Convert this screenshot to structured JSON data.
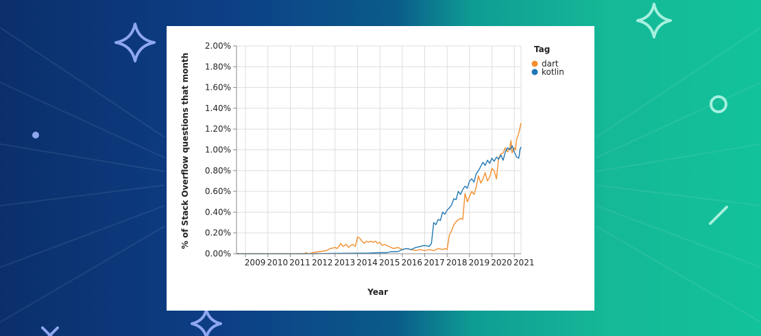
{
  "colors": {
    "dart": "#f28e2b",
    "kotlin": "#1f77b4",
    "background_left": "#0d3f86",
    "background_right": "#12c29a",
    "decoration_left": "#8ea6f0",
    "decoration_right": "#a6f0df"
  },
  "decorations": [
    "sparkle-icon",
    "sparkle-icon",
    "sparkle-icon",
    "ring-icon",
    "dot-icon",
    "slash-icon",
    "x-icon"
  ],
  "chart_data": {
    "type": "line",
    "xlabel": "Year",
    "ylabel": "% of Stack Overflow questions that month",
    "ylim": [
      0,
      2.0
    ],
    "xlim": [
      2008.6,
      2021.3
    ],
    "y_ticks": [
      "0.00%",
      "0.20%",
      "0.40%",
      "0.60%",
      "0.80%",
      "1.00%",
      "1.20%",
      "1.40%",
      "1.60%",
      "1.80%",
      "2.00%"
    ],
    "x_ticks": [
      "2009",
      "2010",
      "2011",
      "2012",
      "2013",
      "2014",
      "2015",
      "2016",
      "2017",
      "2018",
      "2019",
      "2020",
      "2021"
    ],
    "grid": true,
    "legend": {
      "title": "Tag",
      "position": "right"
    },
    "series": [
      {
        "name": "dart",
        "points": [
          [
            2008.6,
            0.0
          ],
          [
            2011.6,
            0.0
          ],
          [
            2011.7,
            0.01
          ],
          [
            2011.8,
            0.0
          ],
          [
            2012.0,
            0.01
          ],
          [
            2012.3,
            0.02
          ],
          [
            2012.6,
            0.03
          ],
          [
            2012.8,
            0.05
          ],
          [
            2013.0,
            0.06
          ],
          [
            2013.1,
            0.05
          ],
          [
            2013.2,
            0.08
          ],
          [
            2013.25,
            0.1
          ],
          [
            2013.35,
            0.07
          ],
          [
            2013.5,
            0.09
          ],
          [
            2013.6,
            0.06
          ],
          [
            2013.7,
            0.08
          ],
          [
            2013.8,
            0.09
          ],
          [
            2013.9,
            0.07
          ],
          [
            2014.0,
            0.16
          ],
          [
            2014.1,
            0.15
          ],
          [
            2014.2,
            0.12
          ],
          [
            2014.3,
            0.1
          ],
          [
            2014.4,
            0.12
          ],
          [
            2014.5,
            0.11
          ],
          [
            2014.6,
            0.12
          ],
          [
            2014.7,
            0.11
          ],
          [
            2014.8,
            0.12
          ],
          [
            2014.9,
            0.1
          ],
          [
            2015.0,
            0.11
          ],
          [
            2015.1,
            0.08
          ],
          [
            2015.2,
            0.09
          ],
          [
            2015.4,
            0.07
          ],
          [
            2015.6,
            0.05
          ],
          [
            2015.8,
            0.06
          ],
          [
            2016.0,
            0.04
          ],
          [
            2016.2,
            0.05
          ],
          [
            2016.4,
            0.04
          ],
          [
            2016.6,
            0.03
          ],
          [
            2016.8,
            0.04
          ],
          [
            2017.0,
            0.03
          ],
          [
            2017.2,
            0.04
          ],
          [
            2017.4,
            0.03
          ],
          [
            2017.6,
            0.05
          ],
          [
            2017.8,
            0.04
          ],
          [
            2017.9,
            0.05
          ],
          [
            2018.0,
            0.04
          ],
          [
            2018.1,
            0.18
          ],
          [
            2018.2,
            0.22
          ],
          [
            2018.3,
            0.28
          ],
          [
            2018.45,
            0.32
          ],
          [
            2018.6,
            0.34
          ],
          [
            2018.7,
            0.33
          ],
          [
            2018.8,
            0.58
          ],
          [
            2018.9,
            0.5
          ],
          [
            2019.0,
            0.55
          ],
          [
            2019.1,
            0.6
          ],
          [
            2019.2,
            0.57
          ],
          [
            2019.3,
            0.64
          ],
          [
            2019.4,
            0.75
          ],
          [
            2019.5,
            0.68
          ],
          [
            2019.6,
            0.72
          ],
          [
            2019.7,
            0.78
          ],
          [
            2019.8,
            0.7
          ],
          [
            2019.9,
            0.74
          ],
          [
            2020.0,
            0.82
          ],
          [
            2020.1,
            0.8
          ],
          [
            2020.2,
            0.72
          ],
          [
            2020.3,
            0.92
          ],
          [
            2020.4,
            0.96
          ],
          [
            2020.5,
            0.97
          ],
          [
            2020.6,
            1.02
          ],
          [
            2020.7,
            0.98
          ],
          [
            2020.8,
            1.02
          ],
          [
            2020.85,
            1.09
          ],
          [
            2020.9,
            0.97
          ],
          [
            2021.0,
            1.02
          ],
          [
            2021.05,
            1.0
          ],
          [
            2021.1,
            1.1
          ],
          [
            2021.2,
            1.16
          ],
          [
            2021.3,
            1.26
          ]
        ]
      },
      {
        "name": "kotlin",
        "points": [
          [
            2008.6,
            0.0
          ],
          [
            2012.0,
            0.0
          ],
          [
            2013.0,
            0.003
          ],
          [
            2014.0,
            0.005
          ],
          [
            2014.5,
            0.006
          ],
          [
            2015.0,
            0.01
          ],
          [
            2015.3,
            0.01
          ],
          [
            2015.5,
            0.02
          ],
          [
            2015.8,
            0.02
          ],
          [
            2016.0,
            0.04
          ],
          [
            2016.2,
            0.05
          ],
          [
            2016.4,
            0.04
          ],
          [
            2016.6,
            0.06
          ],
          [
            2016.8,
            0.07
          ],
          [
            2017.0,
            0.08
          ],
          [
            2017.2,
            0.07
          ],
          [
            2017.3,
            0.1
          ],
          [
            2017.4,
            0.3
          ],
          [
            2017.5,
            0.28
          ],
          [
            2017.6,
            0.33
          ],
          [
            2017.7,
            0.32
          ],
          [
            2017.8,
            0.4
          ],
          [
            2017.9,
            0.38
          ],
          [
            2018.0,
            0.42
          ],
          [
            2018.1,
            0.44
          ],
          [
            2018.2,
            0.47
          ],
          [
            2018.3,
            0.53
          ],
          [
            2018.4,
            0.52
          ],
          [
            2018.5,
            0.6
          ],
          [
            2018.6,
            0.57
          ],
          [
            2018.7,
            0.62
          ],
          [
            2018.8,
            0.65
          ],
          [
            2018.9,
            0.63
          ],
          [
            2019.0,
            0.7
          ],
          [
            2019.1,
            0.72
          ],
          [
            2019.2,
            0.69
          ],
          [
            2019.3,
            0.77
          ],
          [
            2019.4,
            0.8
          ],
          [
            2019.5,
            0.84
          ],
          [
            2019.6,
            0.88
          ],
          [
            2019.7,
            0.85
          ],
          [
            2019.8,
            0.9
          ],
          [
            2019.9,
            0.87
          ],
          [
            2020.0,
            0.92
          ],
          [
            2020.1,
            0.89
          ],
          [
            2020.2,
            0.93
          ],
          [
            2020.3,
            0.91
          ],
          [
            2020.4,
            0.95
          ],
          [
            2020.5,
            0.9
          ],
          [
            2020.6,
            0.98
          ],
          [
            2020.7,
            1.02
          ],
          [
            2020.8,
            1.0
          ],
          [
            2020.9,
            1.04
          ],
          [
            2021.0,
            0.98
          ],
          [
            2021.1,
            0.93
          ],
          [
            2021.2,
            0.92
          ],
          [
            2021.25,
            1.0
          ],
          [
            2021.3,
            1.03
          ]
        ]
      }
    ]
  }
}
